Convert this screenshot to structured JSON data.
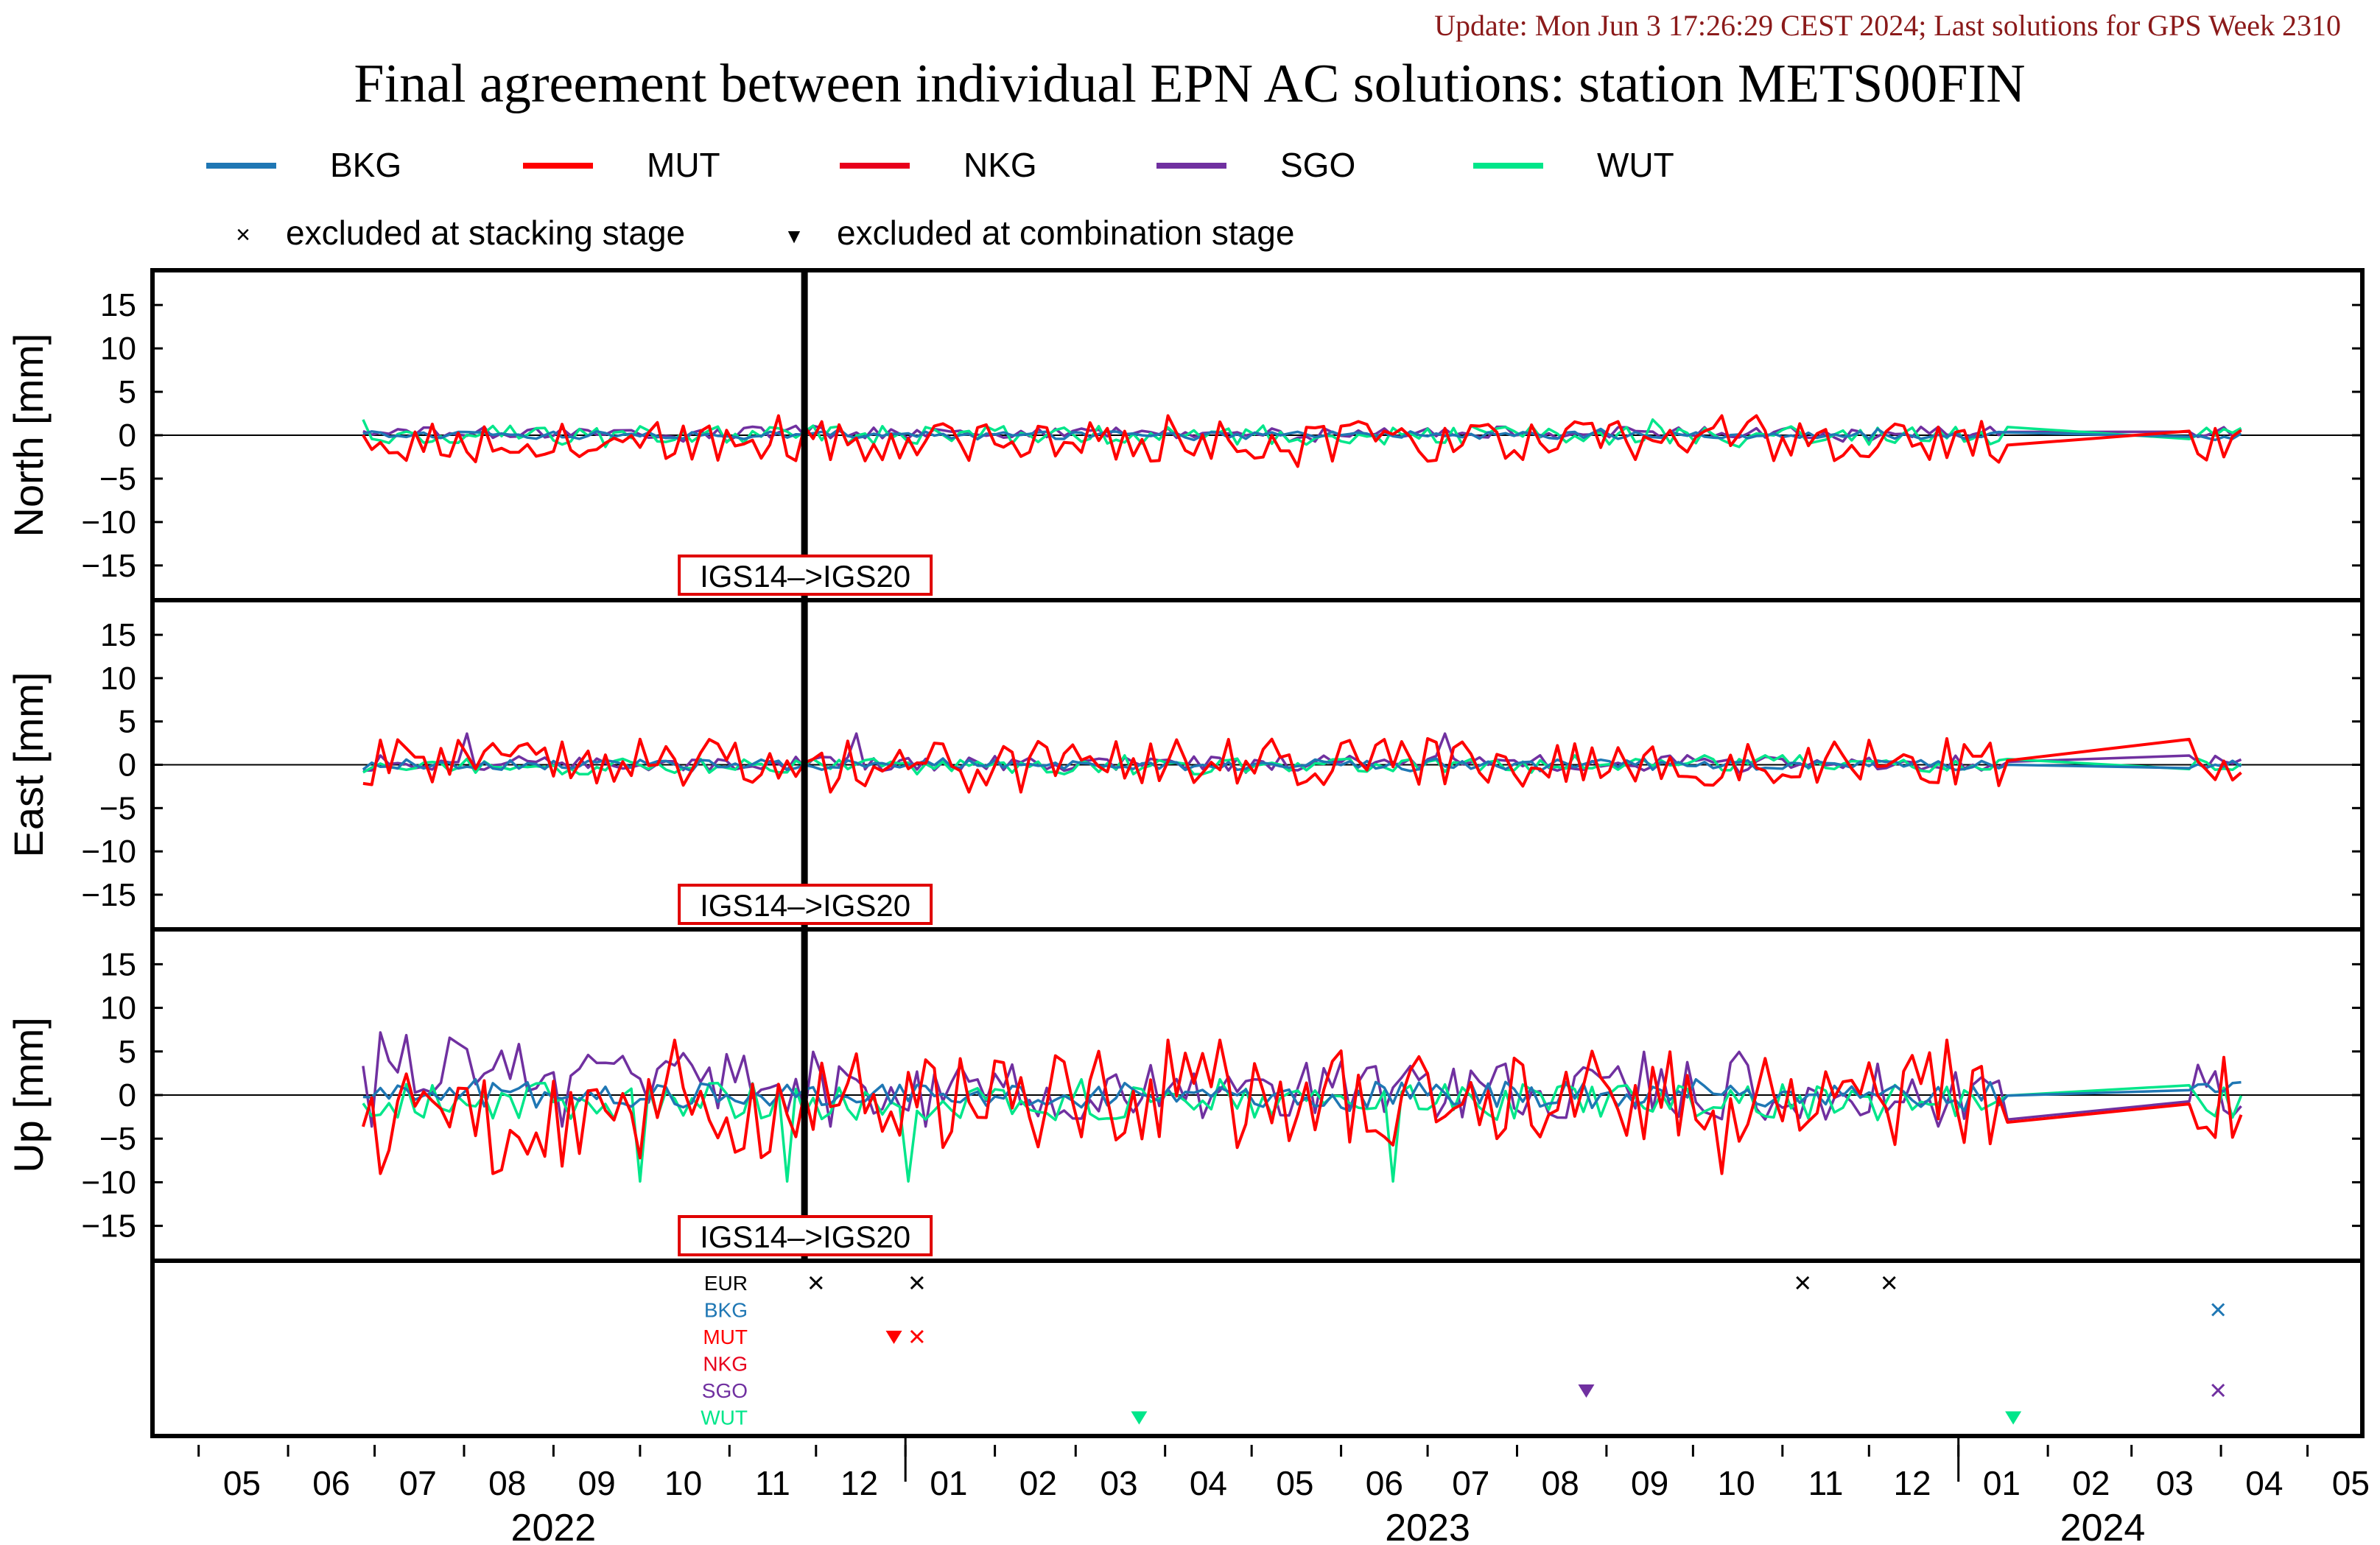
{
  "header": {
    "update_text": "Update: Mon Jun  3 17:26:29 CEST 2024; Last solutions for GPS Week 2310",
    "update_color": "#8b1a1a",
    "title": "Final agreement between individual EPN AC solutions: station METS00FIN"
  },
  "legend": {
    "series": [
      {
        "name": "BKG",
        "color": "#1f77b4"
      },
      {
        "name": "MUT",
        "color": "#ff0000"
      },
      {
        "name": "NKG",
        "color": "#e8001c"
      },
      {
        "name": "SGO",
        "color": "#7030a0"
      },
      {
        "name": "WUT",
        "color": "#00e68a"
      }
    ],
    "markers": [
      {
        "symbol": "×",
        "label": "excluded at stacking stage"
      },
      {
        "symbol": "▼",
        "label": "excluded at combination stage"
      }
    ]
  },
  "reference_change": {
    "label": "IGS14–>IGS20",
    "date": "2022-11-27"
  },
  "chart_data": [
    {
      "type": "line",
      "ylabel": "North [mm]",
      "ylim": [
        -19,
        19
      ],
      "yticks": [
        15,
        10,
        5,
        0,
        -5,
        -10,
        -15
      ],
      "x_domain": [
        "2022-04-15",
        "2024-05-20"
      ],
      "series_summary": [
        {
          "name": "MUT",
          "mean": -0.8,
          "range": [
            -4,
            2.5
          ]
        },
        {
          "name": "SGO",
          "mean": 0.3,
          "range": [
            -0.8,
            1.2
          ]
        },
        {
          "name": "WUT",
          "mean": 0.0,
          "range": [
            -1.5,
            2
          ]
        },
        {
          "name": "BKG",
          "mean": 0.0,
          "range": [
            -0.6,
            0.8
          ]
        }
      ]
    },
    {
      "type": "line",
      "ylabel": "East [mm]",
      "ylim": [
        -19,
        19
      ],
      "yticks": [
        15,
        10,
        5,
        0,
        -5,
        -10,
        -15
      ],
      "x_domain": [
        "2022-04-15",
        "2024-05-20"
      ],
      "series_summary": [
        {
          "name": "MUT",
          "mean": 0.3,
          "range": [
            -3.5,
            4
          ]
        },
        {
          "name": "SGO",
          "mean": 0.2,
          "range": [
            -1,
            4
          ]
        },
        {
          "name": "WUT",
          "mean": -0.1,
          "range": [
            -1.2,
            1.2
          ]
        },
        {
          "name": "BKG",
          "mean": 0.0,
          "range": [
            -0.8,
            0.8
          ]
        }
      ]
    },
    {
      "type": "line",
      "ylabel": "Up [mm]",
      "ylim": [
        -19,
        19
      ],
      "yticks": [
        15,
        10,
        5,
        0,
        -5,
        -10,
        -15
      ],
      "x_domain": [
        "2022-04-15",
        "2024-05-20"
      ],
      "series_summary": [
        {
          "name": "MUT",
          "mean": -0.5,
          "range": [
            -10,
            7
          ]
        },
        {
          "name": "SGO",
          "mean": 0.5,
          "range": [
            -4,
            5.5
          ]
        },
        {
          "name": "WUT",
          "mean": -0.8,
          "range": [
            -11,
            2
          ]
        },
        {
          "name": "BKG",
          "mean": 0.0,
          "range": [
            -2,
            2
          ]
        }
      ]
    }
  ],
  "exclusions": {
    "rows": [
      {
        "name": "EUR",
        "color": "#000000"
      },
      {
        "name": "BKG",
        "color": "#1f77b4"
      },
      {
        "name": "MUT",
        "color": "#ff0000"
      },
      {
        "name": "NKG",
        "color": "#e8001c"
      },
      {
        "name": "SGO",
        "color": "#7030a0"
      },
      {
        "name": "WUT",
        "color": "#00e68a"
      }
    ],
    "marks": [
      {
        "row": "EUR",
        "kind": "stacking",
        "date": "2022-12-01"
      },
      {
        "row": "EUR",
        "kind": "stacking",
        "date": "2023-01-05"
      },
      {
        "row": "EUR",
        "kind": "stacking",
        "date": "2023-11-08"
      },
      {
        "row": "EUR",
        "kind": "stacking",
        "date": "2023-12-08"
      },
      {
        "row": "BKG",
        "kind": "stacking",
        "date": "2024-03-31"
      },
      {
        "row": "MUT",
        "kind": "combination",
        "date": "2022-12-28"
      },
      {
        "row": "MUT",
        "kind": "stacking",
        "date": "2023-01-05"
      },
      {
        "row": "SGO",
        "kind": "combination",
        "date": "2023-08-25"
      },
      {
        "row": "SGO",
        "kind": "stacking",
        "date": "2024-03-31"
      },
      {
        "row": "WUT",
        "kind": "combination",
        "date": "2023-03-23"
      },
      {
        "row": "WUT",
        "kind": "combination",
        "date": "2024-01-20"
      }
    ]
  },
  "x_axis": {
    "month_labels": [
      "05",
      "06",
      "07",
      "08",
      "09",
      "10",
      "11",
      "12",
      "01",
      "02",
      "03",
      "04",
      "05",
      "06",
      "07",
      "08",
      "09",
      "10",
      "11",
      "12",
      "01",
      "02",
      "03",
      "04",
      "05"
    ],
    "year_labels": [
      "2022",
      "2023",
      "2024"
    ]
  }
}
